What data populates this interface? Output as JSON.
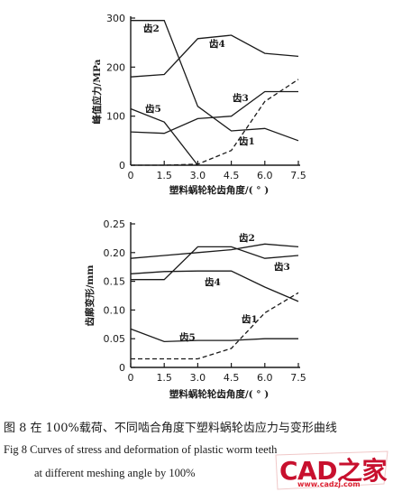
{
  "chart_data": [
    {
      "type": "line",
      "ylabel": "峰值应力/MPa",
      "xlabel": "塑料蜗轮轮齿角度/( ° )",
      "xlim": [
        0,
        7.5
      ],
      "ylim": [
        0,
        300
      ],
      "x_ticks": [
        "0",
        "1.5",
        "3.0",
        "4.5",
        "6.0",
        "7.5"
      ],
      "y_ticks": [
        "0",
        "100",
        "200",
        "300"
      ],
      "grid": false,
      "series": [
        {
          "name": "齿1",
          "dashed": true,
          "x": [
            0,
            1.5,
            3.0,
            4.5,
            6.0,
            7.5
          ],
          "y": [
            0,
            0,
            2,
            30,
            130,
            175
          ]
        },
        {
          "name": "齿2",
          "dashed": false,
          "x": [
            0,
            1.5,
            3.0,
            4.5,
            6.0,
            7.5
          ],
          "y": [
            295,
            295,
            120,
            70,
            75,
            50
          ]
        },
        {
          "name": "齿3",
          "dashed": false,
          "x": [
            0,
            1.5,
            3.0,
            4.5,
            6.0,
            7.5
          ],
          "y": [
            68,
            65,
            95,
            100,
            150,
            150
          ]
        },
        {
          "name": "齿4",
          "dashed": false,
          "x": [
            0,
            1.5,
            3.0,
            4.5,
            6.0,
            7.5
          ],
          "y": [
            180,
            185,
            258,
            265,
            228,
            222
          ]
        },
        {
          "name": "齿5",
          "dashed": false,
          "x": [
            0,
            1.5,
            3.0
          ],
          "y": [
            115,
            88,
            0
          ]
        }
      ]
    },
    {
      "type": "line",
      "ylabel": "齿廓变形/mm",
      "xlabel": "塑料蜗轮轮齿角度/( ° )",
      "xlim": [
        0,
        7.5
      ],
      "ylim": [
        0,
        0.25
      ],
      "x_ticks": [
        "0",
        "1.5",
        "3.0",
        "4.5",
        "6.0",
        "7.5"
      ],
      "y_ticks": [
        "0",
        "0.05",
        "0.10",
        "0.15",
        "0.20",
        "0.25"
      ],
      "grid": false,
      "series": [
        {
          "name": "齿1",
          "dashed": true,
          "x": [
            0,
            1.5,
            3.0,
            4.5,
            6.0,
            7.5
          ],
          "y": [
            0.015,
            0.015,
            0.015,
            0.033,
            0.095,
            0.13
          ]
        },
        {
          "name": "齿2",
          "dashed": false,
          "x": [
            0,
            1.5,
            3.0,
            4.5,
            6.0,
            7.5
          ],
          "y": [
            0.19,
            0.195,
            0.2,
            0.205,
            0.215,
            0.21
          ]
        },
        {
          "name": "齿3",
          "dashed": false,
          "x": [
            0,
            1.5,
            3.0,
            4.5,
            6.0,
            7.5
          ],
          "y": [
            0.153,
            0.153,
            0.21,
            0.21,
            0.19,
            0.195
          ]
        },
        {
          "name": "齿4",
          "dashed": false,
          "x": [
            0,
            1.5,
            3.0,
            4.5,
            6.0,
            7.5
          ],
          "y": [
            0.163,
            0.167,
            0.168,
            0.168,
            0.14,
            0.115
          ]
        },
        {
          "name": "齿5",
          "dashed": false,
          "x": [
            0,
            1.5,
            3.0,
            4.5,
            6.0,
            7.5
          ],
          "y": [
            0.067,
            0.045,
            0.047,
            0.047,
            0.05,
            0.05
          ]
        }
      ]
    }
  ],
  "caption": {
    "line1": "图 8  在 100%载荷、不同啮合角度下塑料蜗轮齿应力与变形曲线",
    "line2": "Fig 8 Curves of stress and deformation of plastic worm teeth",
    "line3": "at different meshing angle by 100%"
  },
  "watermark": {
    "logo_text": "CAD之家",
    "url": "www.cadzj.com"
  },
  "colors": {
    "ink": "#1a1a1a",
    "watermark": "#c8102e"
  }
}
